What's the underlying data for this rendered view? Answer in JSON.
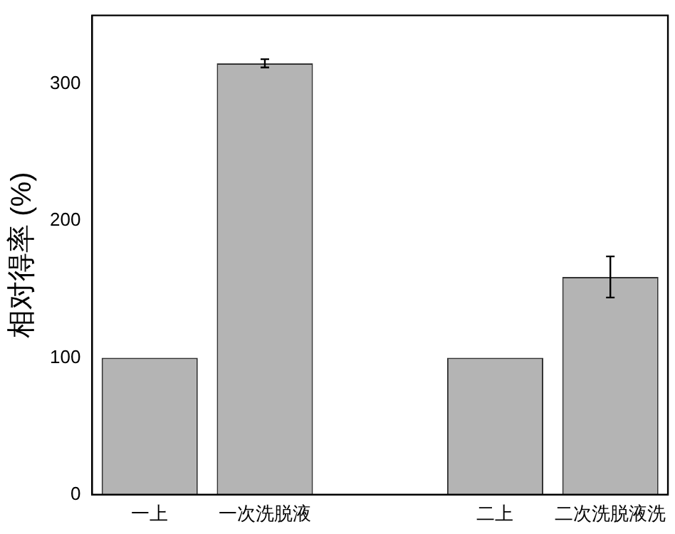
{
  "chart_data": {
    "type": "bar",
    "ylabel": "相对得率 (%)",
    "categories": [
      "一上",
      "一次洗脱液",
      null,
      "二上",
      "二次洗脱液洗"
    ],
    "values": [
      100,
      315,
      null,
      100,
      159
    ],
    "errors": [
      null,
      3,
      null,
      null,
      15
    ],
    "color": "#b4b4b4",
    "ylim": [
      0,
      350
    ],
    "yticks": [
      0,
      100,
      200,
      300
    ],
    "grid": false,
    "legend": false
  }
}
